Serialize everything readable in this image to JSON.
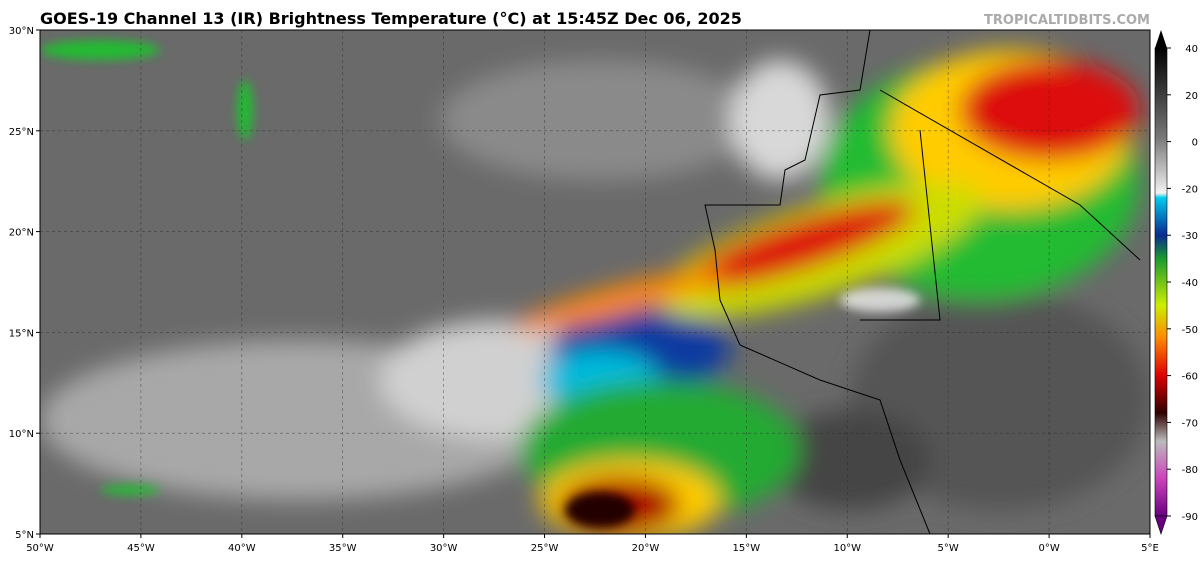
{
  "header": {
    "title": "GOES-19 Channel 13 (IR) Brightness Temperature (°C) at 15:45Z Dec 06, 2025",
    "credit": "TROPICALTIDBITS.COM"
  },
  "map": {
    "lon_labels": [
      "50°W",
      "45°W",
      "40°W",
      "35°W",
      "30°W",
      "25°W",
      "20°W",
      "15°W",
      "10°W",
      "5°W",
      "0°W",
      "5°E"
    ],
    "lat_labels": [
      "30°N",
      "25°N",
      "20°N",
      "15°N",
      "10°N",
      "5°N"
    ]
  },
  "colorbar": {
    "ticks": [
      40,
      20,
      0,
      -20,
      -30,
      -40,
      -50,
      -60,
      -70,
      -80,
      -90
    ]
  }
}
